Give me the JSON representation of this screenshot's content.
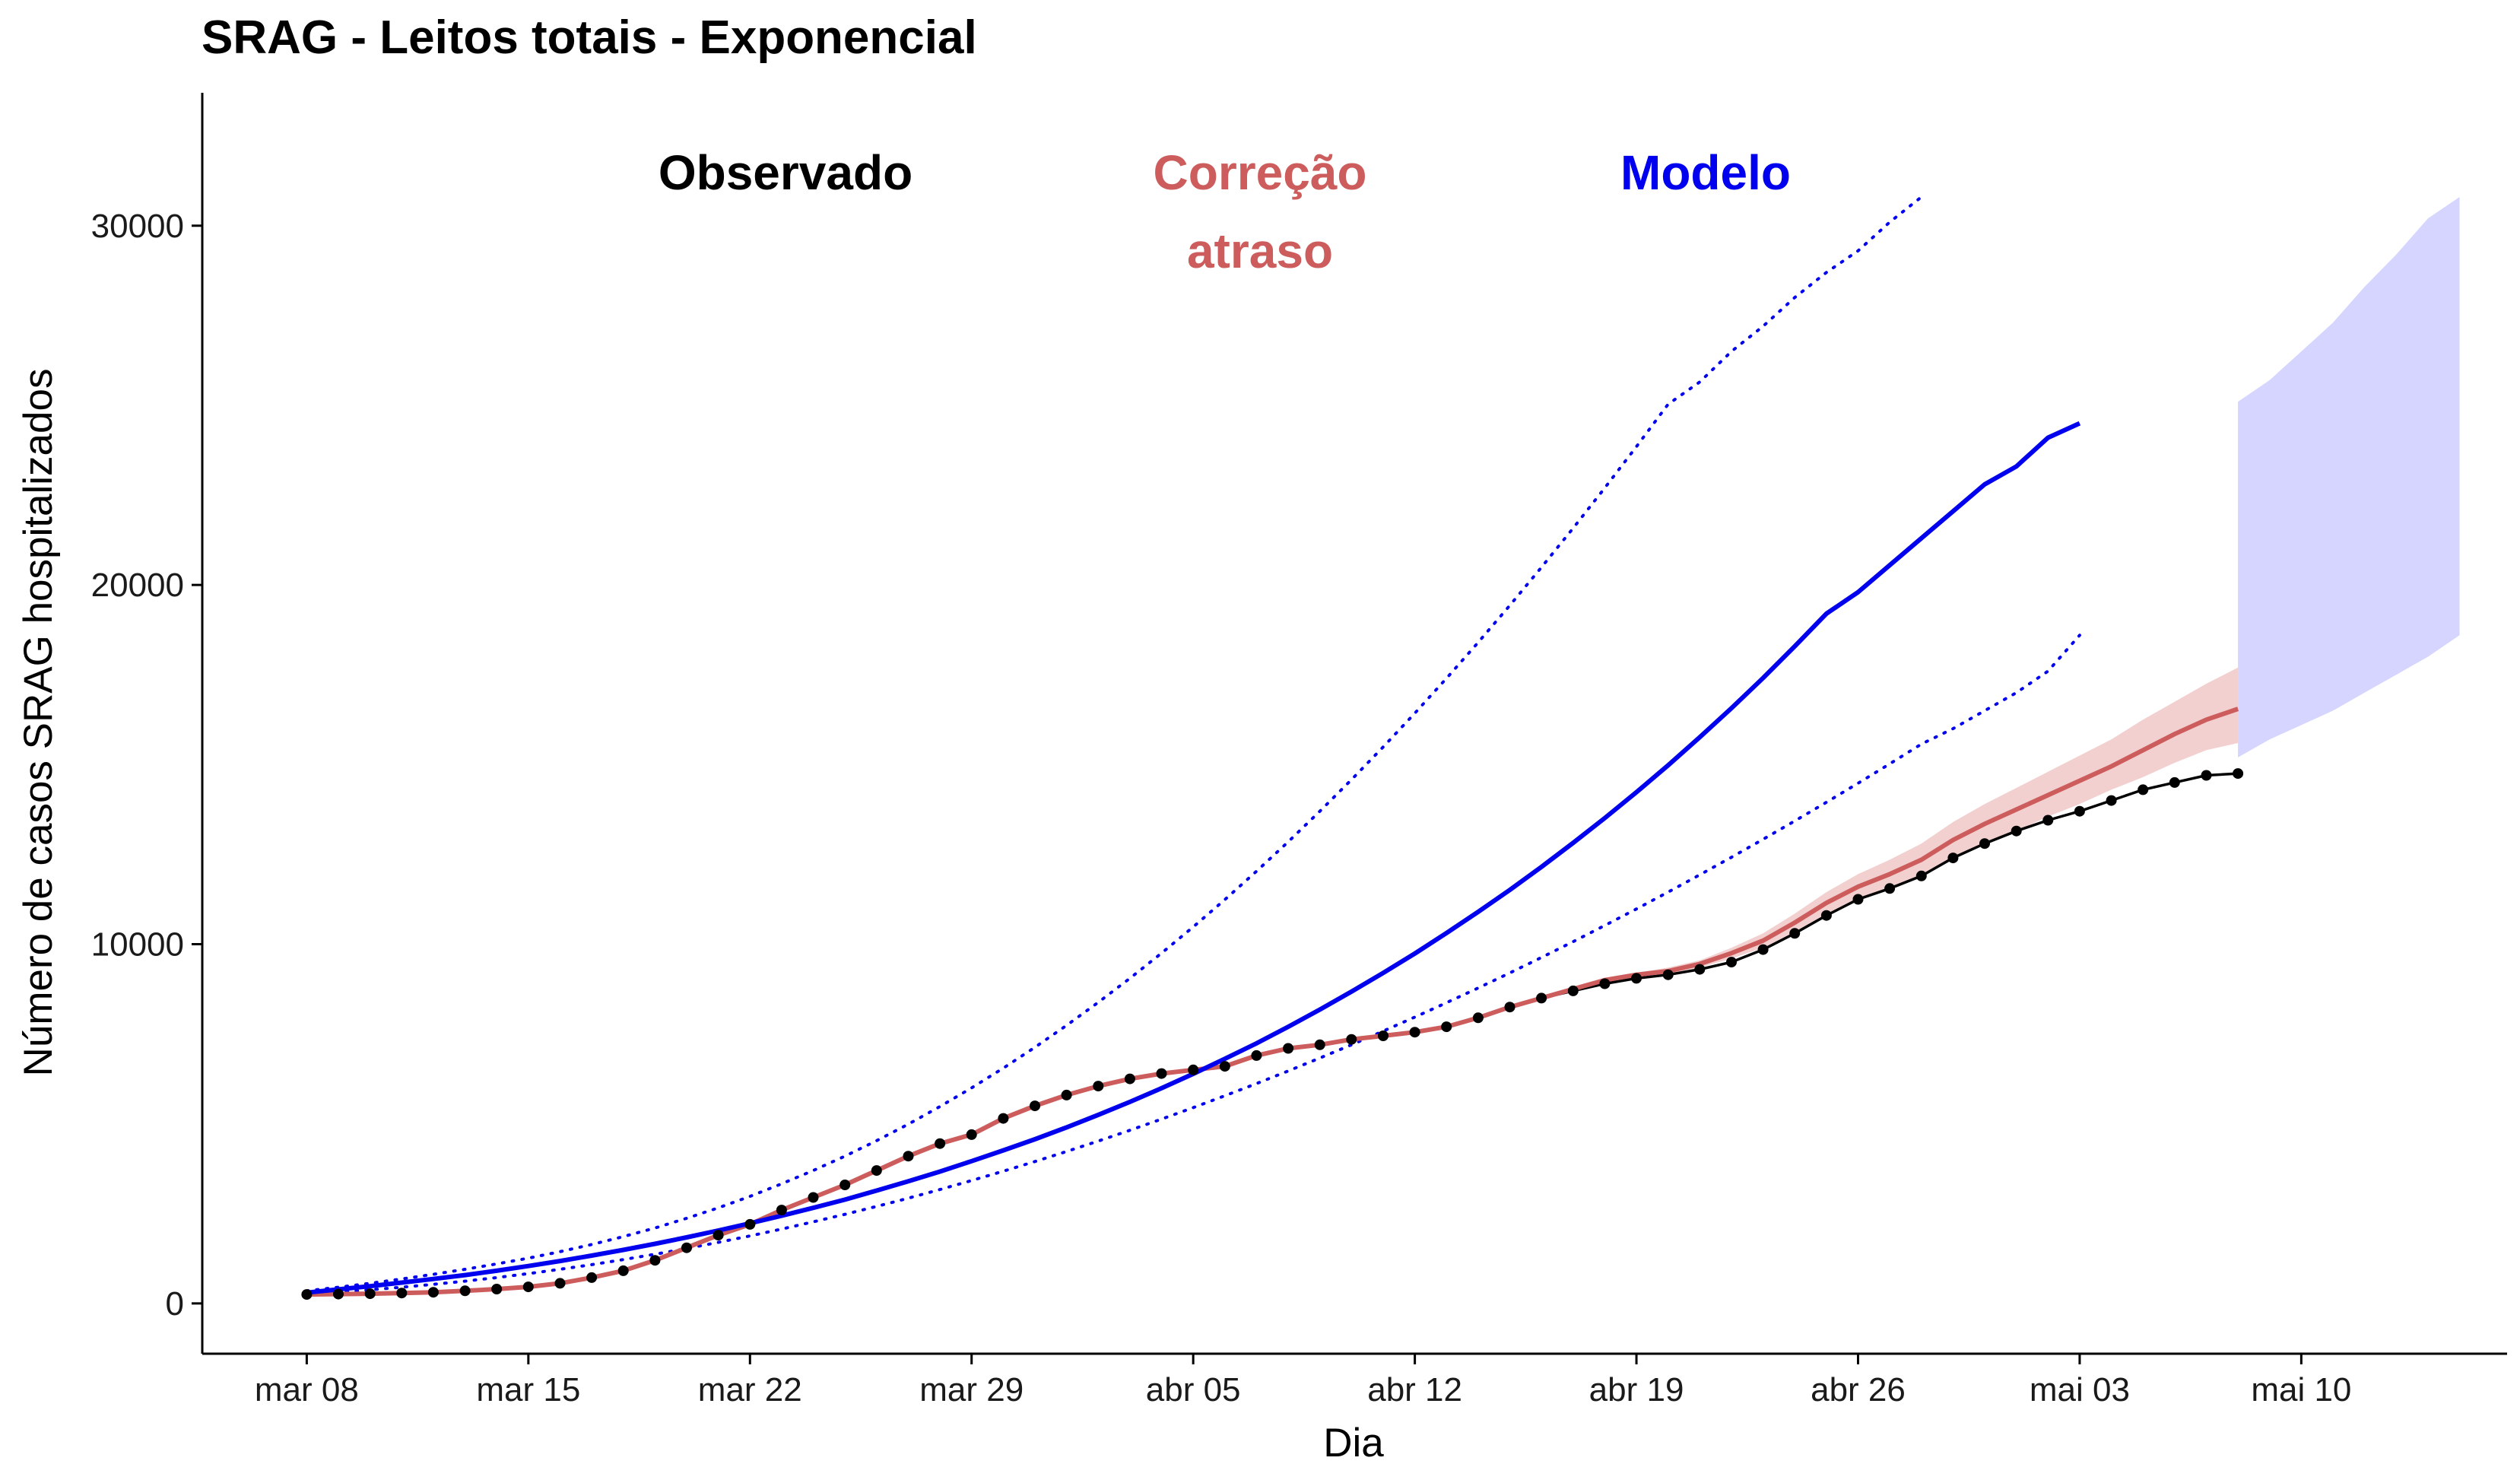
{
  "chart_data": {
    "type": "line",
    "title": "SRAG - Leitos totais - Exponencial",
    "xlabel": "Dia",
    "ylabel": "Número de casos SRAG hospitalizados",
    "x_tick_labels": [
      "mar 08",
      "mar 15",
      "mar 22",
      "mar 29",
      "abr 05",
      "abr 12",
      "abr 19",
      "abr 26",
      "mai 03",
      "mai 10"
    ],
    "y_ticks": [
      0,
      10000,
      20000,
      30000
    ],
    "y_tick_labels": [
      "0",
      "10000",
      "20000",
      "30000"
    ],
    "ylim": [
      -1400,
      33700
    ],
    "xlim_days": [
      -3.3,
      69.5
    ],
    "grid": false,
    "legend_placement": "top-center",
    "colors": {
      "observado": "#000000",
      "correcao": "#CD5C5C",
      "correcao_band": "#F0C8C8",
      "modelo": "#0000EE",
      "modelo_band": "#D5D5FF",
      "modelo_bounds": "#0000EE"
    },
    "annotations": [
      {
        "series": "observado",
        "lines": [
          "Observado"
        ],
        "color": "#000000"
      },
      {
        "series": "correcao",
        "lines": [
          "Correção",
          "atraso"
        ],
        "color": "#CD5C5C"
      },
      {
        "series": "modelo",
        "lines": [
          "Modelo"
        ],
        "color": "#0000EE"
      }
    ],
    "series": [
      {
        "id": "observado",
        "x_start_day": 0,
        "values": [
          250,
          260,
          270,
          290,
          310,
          350,
          400,
          460,
          560,
          720,
          910,
          1200,
          1550,
          1900,
          2200,
          2600,
          2950,
          3300,
          3700,
          4100,
          4450,
          4700,
          5150,
          5500,
          5800,
          6050,
          6250,
          6400,
          6500,
          6600,
          6900,
          7100,
          7200,
          7350,
          7450,
          7550,
          7700,
          7950,
          8250,
          8500,
          8700,
          8900,
          9050,
          9150,
          9300,
          9500,
          9850,
          10300,
          10800,
          11250,
          11550,
          11900,
          12400,
          12800,
          13150,
          13450,
          13700,
          14000,
          14300,
          14500,
          14700,
          14750
        ]
      },
      {
        "id": "correcao",
        "x_start_day": 0,
        "values": [
          250,
          260,
          270,
          290,
          310,
          350,
          400,
          460,
          560,
          720,
          910,
          1200,
          1550,
          1900,
          2200,
          2600,
          2950,
          3300,
          3700,
          4100,
          4450,
          4700,
          5150,
          5500,
          5800,
          6050,
          6250,
          6400,
          6500,
          6600,
          6900,
          7100,
          7200,
          7350,
          7450,
          7550,
          7700,
          7950,
          8250,
          8500,
          8750,
          9000,
          9150,
          9250,
          9450,
          9750,
          10100,
          10600,
          11150,
          11600,
          11950,
          12350,
          12900,
          13350,
          13750,
          14150,
          14550,
          14950,
          15400,
          15850,
          16250,
          16550
        ],
        "band_upper": [
          250,
          260,
          270,
          290,
          310,
          350,
          400,
          460,
          560,
          720,
          910,
          1200,
          1550,
          1900,
          2200,
          2600,
          2950,
          3300,
          3700,
          4100,
          4450,
          4700,
          5150,
          5500,
          5800,
          6050,
          6250,
          6400,
          6500,
          6600,
          6900,
          7100,
          7200,
          7350,
          7450,
          7550,
          7700,
          7950,
          8250,
          8550,
          8800,
          9050,
          9200,
          9350,
          9550,
          9900,
          10300,
          10850,
          11450,
          11950,
          12350,
          12800,
          13400,
          13900,
          14350,
          14800,
          15250,
          15700,
          16250,
          16750,
          17250,
          17700
        ],
        "band_lower": [
          250,
          260,
          270,
          290,
          310,
          350,
          400,
          460,
          560,
          720,
          910,
          1200,
          1550,
          1900,
          2200,
          2600,
          2950,
          3300,
          3700,
          4100,
          4450,
          4700,
          5150,
          5500,
          5800,
          6050,
          6250,
          6400,
          6500,
          6600,
          6900,
          7100,
          7200,
          7350,
          7450,
          7550,
          7700,
          7950,
          8250,
          8450,
          8700,
          8950,
          9100,
          9150,
          9350,
          9600,
          9900,
          10350,
          10850,
          11250,
          11550,
          11950,
          12400,
          12800,
          13150,
          13550,
          13900,
          14300,
          14650,
          15050,
          15400,
          15600
        ]
      },
      {
        "id": "modelo",
        "x_start_day": 0,
        "values": [
          300,
          390,
          480,
          580,
          680,
          790,
          910,
          1040,
          1180,
          1330,
          1490,
          1660,
          1840,
          2030,
          2230,
          2440,
          2660,
          2890,
          3140,
          3400,
          3670,
          3960,
          4260,
          4570,
          4900,
          5250,
          5610,
          5990,
          6390,
          6810,
          7240,
          7700,
          8180,
          8680,
          9200,
          9740,
          10310,
          10900,
          11510,
          12150,
          12820,
          13510,
          14230,
          14980,
          15760,
          16570,
          17410,
          18290,
          19200,
          19800,
          20550,
          21300,
          22050,
          22800,
          23300,
          24100,
          24500
        ],
        "y_ticks_note": ""
      },
      {
        "id": "modelo_upper",
        "x_start_day": 0,
        "values": [
          350,
          450,
          560,
          680,
          810,
          950,
          1100,
          1260,
          1440,
          1640,
          1860,
          2100,
          2370,
          2660,
          2980,
          3330,
          3700,
          4100,
          4530,
          4990,
          5480,
          6000,
          6550,
          7130,
          7740,
          8380,
          9050,
          9750,
          10480,
          11240,
          12030,
          12850,
          13700,
          14580,
          15490,
          16430,
          17400,
          18400,
          19430,
          20490,
          21580,
          22700,
          23850,
          25030,
          25650,
          26500,
          27200,
          28000,
          28700,
          29300,
          30100,
          30800
        ]
      },
      {
        "id": "modelo_lower",
        "x_start_day": 0,
        "values": [
          250,
          310,
          380,
          450,
          530,
          620,
          720,
          830,
          950,
          1080,
          1220,
          1370,
          1530,
          1700,
          1880,
          2070,
          2270,
          2480,
          2700,
          2930,
          3170,
          3420,
          3680,
          3950,
          4230,
          4520,
          4820,
          5130,
          5450,
          5780,
          6120,
          6470,
          6830,
          7200,
          7580,
          7970,
          8370,
          8780,
          9200,
          9630,
          10070,
          10520,
          10980,
          11450,
          11930,
          12420,
          12920,
          13430,
          13950,
          14480,
          15020,
          15570,
          16000,
          16500,
          17000,
          17600,
          18600
        ]
      },
      {
        "id": "modelo_forecast_band",
        "x_days": [
          61,
          62,
          63,
          64,
          65,
          66,
          67,
          68
        ],
        "band_upper": [
          25100,
          25700,
          26500,
          27300,
          28300,
          29200,
          30200,
          30800
        ],
        "band_lower": [
          15200,
          15700,
          16100,
          16500,
          17000,
          17500,
          18000,
          18600
        ]
      }
    ]
  }
}
